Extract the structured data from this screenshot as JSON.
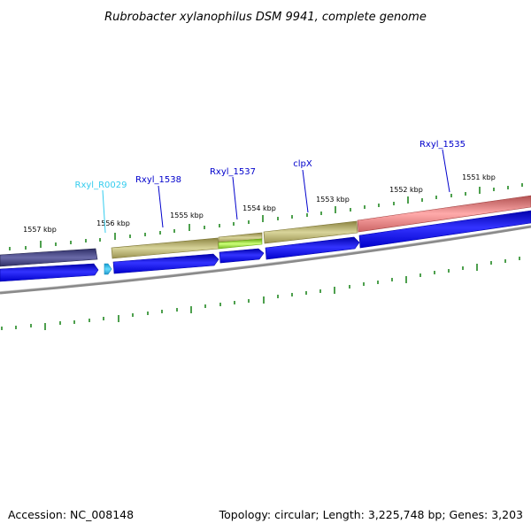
{
  "title": "Rubrobacter xylanophilus DSM 9941, complete genome",
  "footer": {
    "accession": "Accession: NC_008148",
    "summary": "Topology: circular; Length: 3,225,748 bp; Genes: 3,203"
  },
  "kbp_labels": [
    "1557 kbp",
    "1556 kbp",
    "1555 kbp",
    "1554 kbp",
    "1553 kbp",
    "1552 kbp",
    "1551 kbp"
  ],
  "gene_labels": [
    {
      "text": "Rxyl_R0029",
      "color": "#33ccee"
    },
    {
      "text": "Rxyl_1538",
      "color": "#0000cc"
    },
    {
      "text": "Rxyl_1537",
      "color": "#0000cc"
    },
    {
      "text": "clpX",
      "color": "#0000cc"
    },
    {
      "text": "Rxyl_1535",
      "color": "#0000cc"
    }
  ],
  "colors": {
    "cog_dark_purple": "#4a4a8a",
    "cog_olive": "#b8b070",
    "cog_light_green": "#99ee33",
    "cog_salmon": "#ee8888",
    "cds_blue": "#0000ee",
    "rna_cyan": "#33bbee",
    "tick_green": "#228822",
    "backbone_gray": "#888888"
  }
}
